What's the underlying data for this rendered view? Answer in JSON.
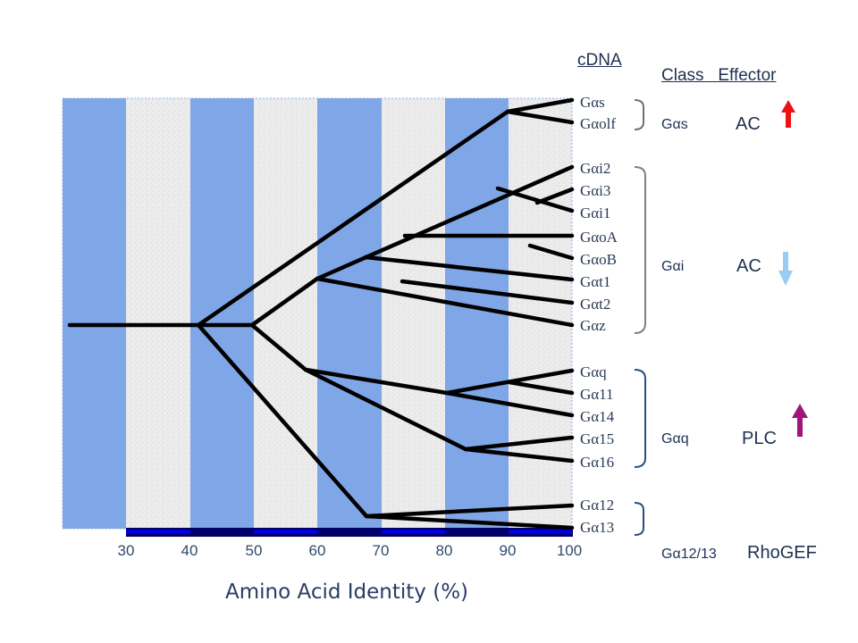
{
  "headers": {
    "cdna": "cDNA",
    "class_effector": "Class   Effector"
  },
  "leaves": [
    "Gαs",
    "Gαolf",
    "Gαi2",
    "Gαi3",
    "Gαi1",
    "GαoA",
    "GαoB",
    "Gαt1",
    "Gαt2",
    "Gαz",
    "Gαq",
    "Gα11",
    "Gα14",
    "Gα15",
    "Gα16",
    "Gα12",
    "Gα13"
  ],
  "classes": [
    {
      "name": "Gαs",
      "effector": "AC",
      "arrow": "up",
      "arrow_color": "#ee1111"
    },
    {
      "name": "Gαi",
      "effector": "AC",
      "arrow": "down",
      "arrow_color": "#99ccf2"
    },
    {
      "name": "Gαq",
      "effector": "PLC",
      "arrow": "up",
      "arrow_color": "#a0157a"
    },
    {
      "name": "Gα12/13",
      "effector": "RhoGEF",
      "arrow": "none",
      "arrow_color": ""
    }
  ],
  "axis": {
    "ticks": [
      "30",
      "40",
      "50",
      "60",
      "70",
      "80",
      "90",
      "100"
    ],
    "label": "Amino Acid Identity (%)"
  },
  "colors": {
    "band_blue": "#7fa6e6",
    "band_gray": "#ececec",
    "branch": "#000000",
    "bracket": "#808080",
    "bracket_blue": "#2a4f7e",
    "axis_bar": "#0000dd"
  }
}
